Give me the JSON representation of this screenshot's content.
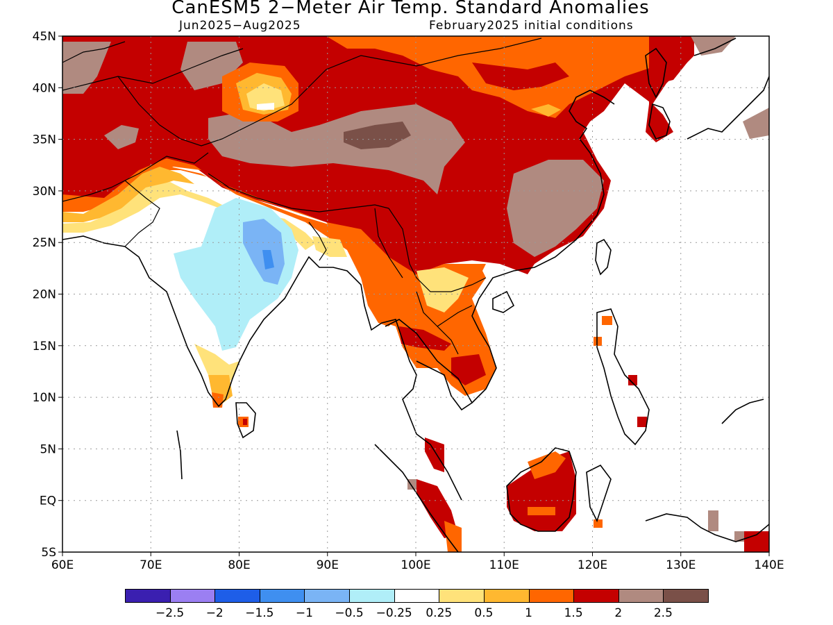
{
  "title": "CanESM5 2−Meter Air Temp. Standard Anomalies",
  "subtitle_left": "Jun2025−Aug2025",
  "subtitle_right": "February2025 initial conditions",
  "map": {
    "lon_range": [
      60,
      140
    ],
    "lat_range": [
      -5,
      45
    ],
    "x_ticks": [
      "60E",
      "70E",
      "80E",
      "90E",
      "100E",
      "110E",
      "120E",
      "130E",
      "140E"
    ],
    "y_ticks": [
      "45N",
      "40N",
      "35N",
      "30N",
      "25N",
      "20N",
      "15N",
      "10N",
      "5N",
      "EQ",
      "5S"
    ],
    "x_tick_values": [
      60,
      70,
      80,
      90,
      100,
      110,
      120,
      130,
      140
    ],
    "y_tick_values": [
      45,
      40,
      35,
      30,
      25,
      20,
      15,
      10,
      5,
      0,
      -5
    ],
    "grid": "dotted"
  },
  "colorbar": {
    "colors": [
      "#3a1fb0",
      "#9b7ff2",
      "#1e5ee8",
      "#3f8ff0",
      "#7ab4f5",
      "#b0eef8",
      "#ffffff",
      "#ffe27a",
      "#ffb830",
      "#ff6600",
      "#c40000",
      "#b08a80",
      "#7a5048"
    ],
    "labels": [
      "−2.5",
      "−2",
      "−1.5",
      "−1",
      "−0.5",
      "−0.25",
      "0.25",
      "0.5",
      "1",
      "1.5",
      "2",
      "2.5"
    ]
  }
}
